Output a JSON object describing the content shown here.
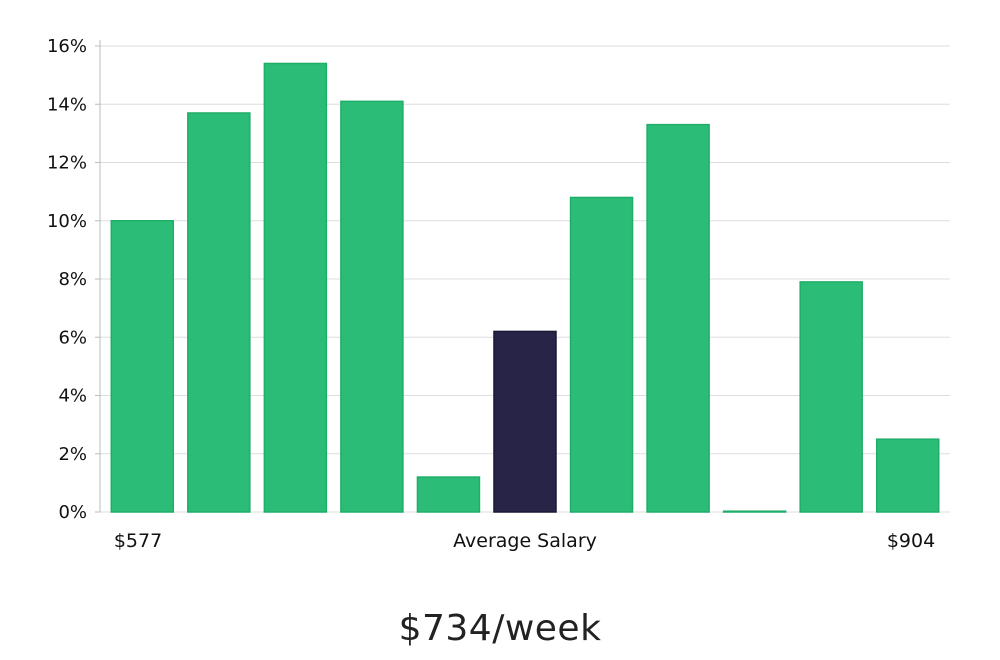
{
  "chart_data": {
    "type": "bar",
    "y_tick_labels": [
      "0%",
      "2%",
      "4%",
      "6%",
      "8%",
      "10%",
      "12%",
      "14%",
      "16%"
    ],
    "y_ticks": [
      0,
      2,
      4,
      6,
      8,
      10,
      12,
      14,
      16
    ],
    "ylim": [
      0,
      16
    ],
    "grid": true,
    "values": [
      10.0,
      13.7,
      15.4,
      14.1,
      1.2,
      6.2,
      10.8,
      13.3,
      0.0,
      7.9,
      2.5
    ],
    "highlight_index": 5,
    "x_labels": {
      "left": "$577",
      "center": "Average Salary",
      "right": "$904"
    },
    "colors": {
      "bar": "#2bbd77",
      "bar_edge": "#1fae68",
      "highlight": "#272447",
      "grid": "#dddddd",
      "axis": "#bbbbbb"
    }
  },
  "headline": "$734/week"
}
